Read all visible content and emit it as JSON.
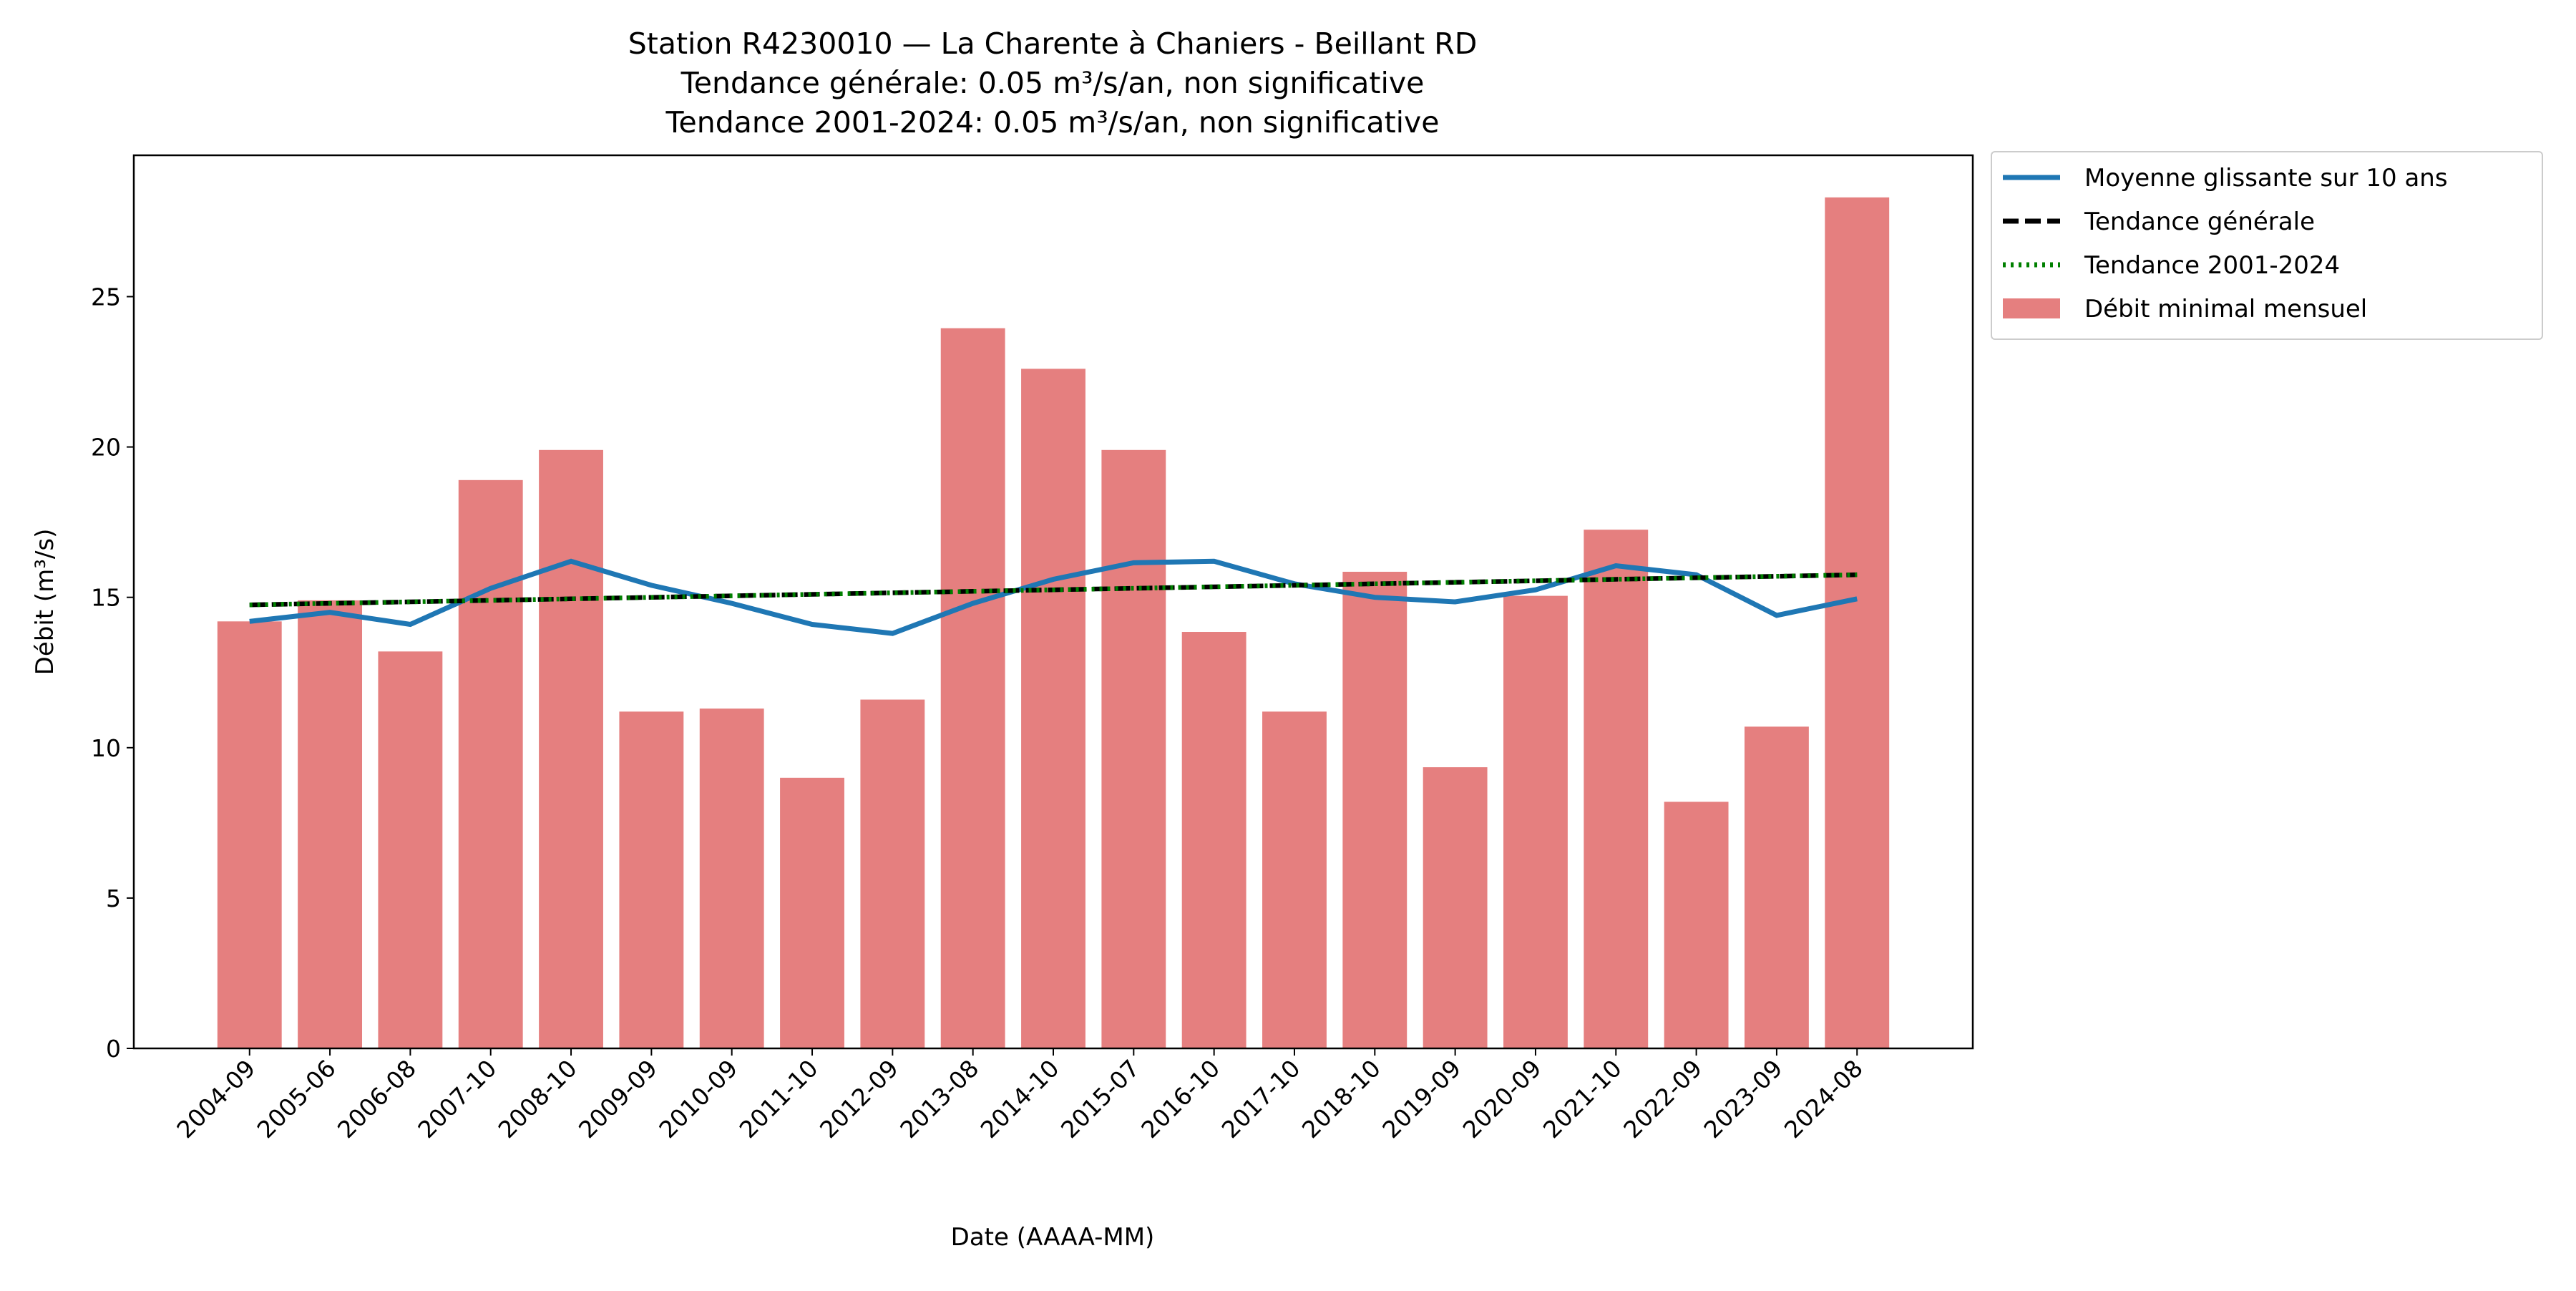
{
  "chart_data": {
    "type": "bar",
    "title": [
      "Station R4230010 — La Charente à Chaniers - Beillant RD",
      "Tendance générale: 0.05 m³/s/an, non significative",
      "Tendance 2001-2024: 0.05 m³/s/an, non significative"
    ],
    "xlabel": "Date (AAAA-MM)",
    "ylabel": "Débit (m³/s)",
    "ylim": [
      0,
      29.7
    ],
    "yticks": [
      0,
      5,
      10,
      15,
      20,
      25
    ],
    "categories": [
      "2004-09",
      "2005-06",
      "2006-08",
      "2007-10",
      "2008-10",
      "2009-09",
      "2010-09",
      "2011-10",
      "2012-09",
      "2013-08",
      "2014-10",
      "2015-07",
      "2016-10",
      "2017-10",
      "2018-10",
      "2019-09",
      "2020-09",
      "2021-10",
      "2022-09",
      "2023-09",
      "2024-08"
    ],
    "series": [
      {
        "name": "Débit minimal mensuel",
        "type": "bar",
        "color": "#e57f7f",
        "values": [
          14.2,
          14.9,
          13.2,
          18.9,
          19.9,
          11.2,
          11.3,
          9.0,
          11.6,
          23.95,
          22.6,
          19.9,
          13.85,
          11.2,
          15.85,
          9.35,
          15.05,
          17.25,
          8.2,
          10.7,
          28.3
        ]
      },
      {
        "name": "Moyenne glissante sur 10 ans",
        "type": "line",
        "color": "#1f77b4",
        "style": "solid",
        "values": [
          14.2,
          14.5,
          14.1,
          15.3,
          16.2,
          15.4,
          14.8,
          14.1,
          13.8,
          14.8,
          15.6,
          16.15,
          16.2,
          15.45,
          15.0,
          14.85,
          15.25,
          16.05,
          15.75,
          14.4,
          14.95
        ]
      },
      {
        "name": "Tendance générale",
        "type": "line",
        "color": "#000000",
        "style": "dashed",
        "values": [
          14.75,
          14.8,
          14.85,
          14.9,
          14.95,
          15.0,
          15.05,
          15.1,
          15.15,
          15.2,
          15.25,
          15.3,
          15.35,
          15.4,
          15.45,
          15.5,
          15.55,
          15.6,
          15.65,
          15.7,
          15.75
        ]
      },
      {
        "name": "Tendance 2001-2024",
        "type": "line",
        "color": "#008000",
        "style": "dotted",
        "values": [
          14.75,
          14.8,
          14.85,
          14.9,
          14.95,
          15.0,
          15.05,
          15.1,
          15.15,
          15.2,
          15.25,
          15.3,
          15.35,
          15.4,
          15.45,
          15.5,
          15.55,
          15.6,
          15.65,
          15.7,
          15.75
        ]
      }
    ],
    "legend": {
      "placement": "outside-top-right",
      "entries": [
        "Moyenne glissante sur 10 ans",
        "Tendance générale",
        "Tendance 2001-2024",
        "Débit minimal mensuel"
      ]
    },
    "grid": false
  }
}
